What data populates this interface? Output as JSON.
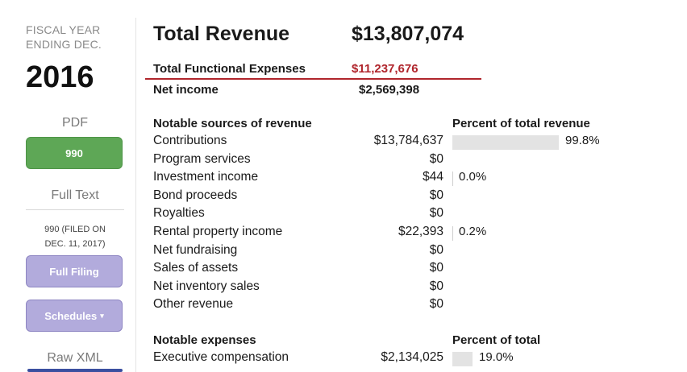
{
  "sidebar": {
    "fiscal_year_label_line1": "FISCAL YEAR",
    "fiscal_year_label_line2": "ENDING DEC.",
    "year": "2016",
    "pdf_heading": "PDF",
    "pdf_button": "990",
    "full_text_heading": "Full Text",
    "filed_line1": "990 (FILED ON",
    "filed_line2": "DEC. 11, 2017)",
    "full_filing_button": "Full Filing",
    "schedules_button": "Schedules",
    "raw_xml_heading": "Raw XML"
  },
  "summary": {
    "total_revenue_label": "Total Revenue",
    "total_revenue_value": "$13,807,074",
    "total_expenses_label": "Total Functional Expenses",
    "total_expenses_value": "$11,237,676",
    "net_income_label": "Net income",
    "net_income_value": "$2,569,398"
  },
  "revenue": {
    "heading": "Notable sources of revenue",
    "percent_heading": "Percent of total revenue",
    "rows": [
      {
        "label": "Contributions",
        "value": "$13,784,637",
        "percent": "99.8%",
        "percent_num": 99.8
      },
      {
        "label": "Program services",
        "value": "$0"
      },
      {
        "label": "Investment income",
        "value": "$44",
        "percent": "0.0%",
        "percent_num": 0.0
      },
      {
        "label": "Bond proceeds",
        "value": "$0"
      },
      {
        "label": "Royalties",
        "value": "$0"
      },
      {
        "label": "Rental property income",
        "value": "$22,393",
        "percent": "0.2%",
        "percent_num": 0.2
      },
      {
        "label": "Net fundraising",
        "value": "$0"
      },
      {
        "label": "Sales of assets",
        "value": "$0"
      },
      {
        "label": "Net inventory sales",
        "value": "$0"
      },
      {
        "label": "Other revenue",
        "value": "$0"
      }
    ]
  },
  "expenses": {
    "heading": "Notable expenses",
    "percent_heading": "Percent of total",
    "rows": [
      {
        "label": "Executive compensation",
        "value": "$2,134,025",
        "percent": "19.0%",
        "percent_num": 19.0
      }
    ]
  },
  "colors": {
    "accent_red": "#b0252c",
    "pdf_button_green": "#5ea756",
    "filing_button_purple": "#b2abdc",
    "bar_gray": "#e3e3e3"
  }
}
